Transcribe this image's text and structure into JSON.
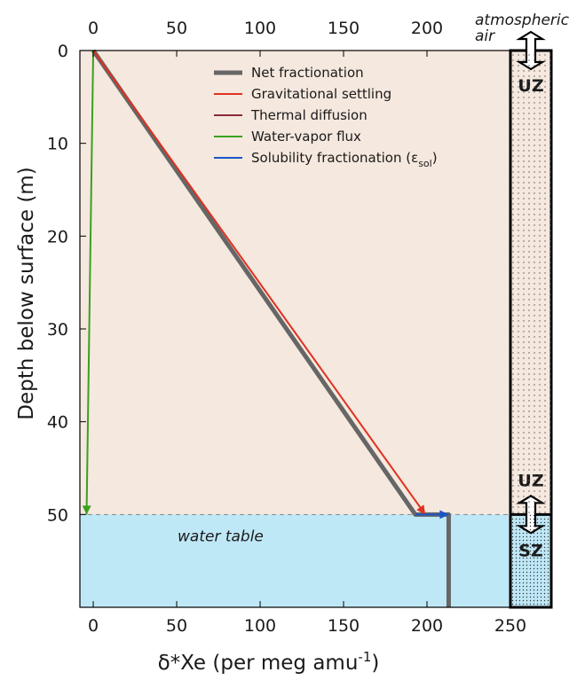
{
  "chart_data": {
    "type": "line",
    "title": "",
    "xlabel_prefix": "δ*Xe (per meg amu",
    "xlabel_exp": "-1",
    "xlabel_suffix": ")",
    "ylabel": "Depth below surface (m)",
    "xlim": [
      -8,
      250
    ],
    "ylim": [
      60,
      0
    ],
    "x_ticks": [
      0,
      50,
      100,
      150,
      200,
      250
    ],
    "x_ticks_top": [
      0,
      50,
      100,
      150,
      200
    ],
    "y_ticks": [
      0,
      10,
      20,
      30,
      40,
      50
    ],
    "grid": false,
    "legend_position": "top-right",
    "water_table_depth": 50,
    "series": [
      {
        "name": "Net fractionation",
        "color": "#666666",
        "points": [
          [
            0,
            0
          ],
          [
            193,
            50
          ],
          [
            213,
            50
          ],
          [
            213,
            60
          ]
        ]
      },
      {
        "name": "Gravitational settling",
        "color": "#e03020",
        "points": [
          [
            0,
            0
          ],
          [
            199,
            50
          ]
        ]
      },
      {
        "name": "Thermal diffusion",
        "color": "#8b2a3a",
        "points": [
          [
            0,
            0
          ],
          [
            0,
            0
          ]
        ]
      },
      {
        "name": "Water-vapor flux",
        "color": "#3aa020",
        "points": [
          [
            0,
            0
          ],
          [
            -4,
            50
          ]
        ]
      },
      {
        "name": "Solubility fractionation",
        "name_sub": "sol",
        "color": "#1a55c8",
        "points": [
          [
            193,
            50
          ],
          [
            213,
            50
          ]
        ]
      }
    ],
    "annotations": {
      "atmospheric_line1": "atmospheric",
      "atmospheric_line2": "air",
      "uz_top": "UZ",
      "uz_bottom": "UZ",
      "sz": "SZ",
      "water_table": "water table"
    },
    "colors": {
      "unsaturated_zone": "#f5e8de",
      "saturated_zone": "#bfe8f7"
    }
  }
}
